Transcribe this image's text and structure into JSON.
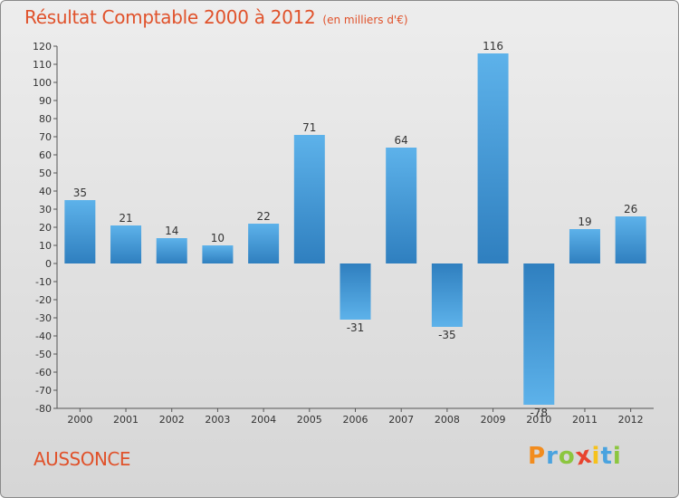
{
  "chart_data": {
    "type": "bar",
    "title": "Résultat Comptable 2000 à 2012",
    "subtitle": "(en milliers d'€)",
    "categories": [
      "2000",
      "2001",
      "2002",
      "2003",
      "2004",
      "2005",
      "2006",
      "2007",
      "2008",
      "2009",
      "2010",
      "2011",
      "2012"
    ],
    "values": [
      35,
      21,
      14,
      10,
      22,
      71,
      -31,
      64,
      -35,
      116,
      -78,
      19,
      26
    ],
    "ylim": [
      -80,
      120
    ],
    "yticks": [
      120,
      110,
      100,
      90,
      80,
      70,
      60,
      50,
      40,
      30,
      20,
      10,
      0,
      -10,
      -20,
      -30,
      -40,
      -50,
      -60,
      -70,
      -80
    ],
    "xlabel": "",
    "ylabel": "",
    "grid": false,
    "bar_color": "#4a9fe0"
  },
  "footer": {
    "place_name": "AUSSONCE",
    "logo_letters": [
      "P",
      "r",
      "o",
      "x",
      "i",
      "t",
      "i"
    ],
    "logo_colors": [
      "#f28c1e",
      "#4aa3df",
      "#8cc63f",
      "#e8432e",
      "#f6c21b",
      "#4aa3df",
      "#8cc63f"
    ]
  }
}
